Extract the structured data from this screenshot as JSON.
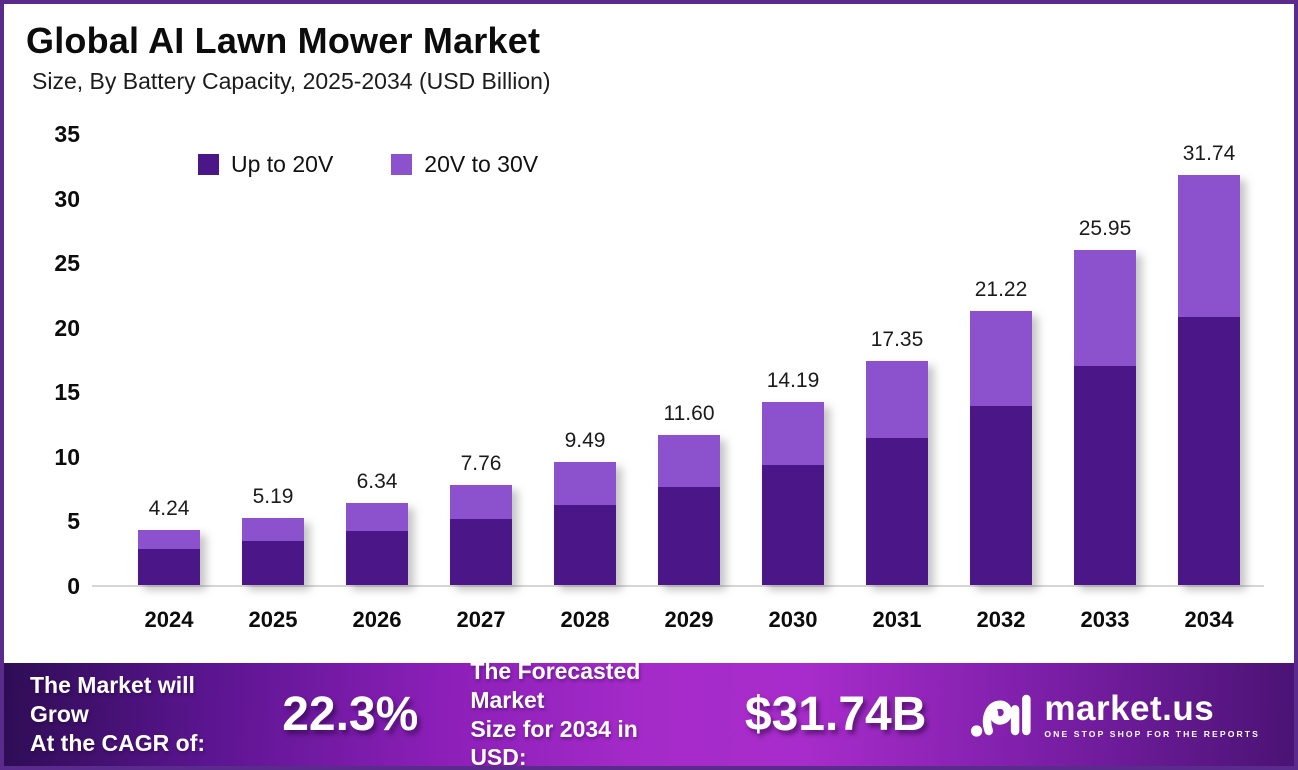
{
  "header": {
    "title": "Global AI Lawn Mower Market",
    "subtitle": "Size, By Battery Capacity, 2025-2034 (USD Billion)"
  },
  "chart_data": {
    "type": "bar",
    "stacked": true,
    "title": "Global AI Lawn Mower Market Size, By Battery Capacity, 2025-2034 (USD Billion)",
    "categories": [
      "2024",
      "2025",
      "2026",
      "2027",
      "2028",
      "2029",
      "2030",
      "2031",
      "2032",
      "2033",
      "2034"
    ],
    "series": [
      {
        "name": "Up to 20V",
        "color": "#4b1687",
        "values": [
          2.78,
          3.4,
          4.15,
          5.08,
          6.21,
          7.6,
          9.3,
          11.36,
          13.9,
          17.0,
          20.79
        ]
      },
      {
        "name": "20V to 30V",
        "color": "#8c52ce",
        "values": [
          1.46,
          1.79,
          2.19,
          2.68,
          3.28,
          4.0,
          4.89,
          5.99,
          7.32,
          8.95,
          10.95
        ]
      }
    ],
    "totals": [
      4.24,
      5.19,
      6.34,
      7.76,
      9.49,
      11.6,
      14.19,
      17.35,
      21.22,
      25.95,
      31.74
    ],
    "total_labels": [
      "4.24",
      "5.19",
      "6.34",
      "7.76",
      "9.49",
      "11.60",
      "14.19",
      "17.35",
      "21.22",
      "25.95",
      "31.74"
    ],
    "xlabel": "",
    "ylabel": "",
    "ylim": [
      0,
      35
    ],
    "yticks": [
      "0",
      "5",
      "10",
      "15",
      "20",
      "25",
      "30",
      "35"
    ],
    "grid": false,
    "legend_position": "top-left"
  },
  "footer": {
    "cagr_label_line1": "The Market will Grow",
    "cagr_label_line2": "At the CAGR of:",
    "cagr_value": "22.3%",
    "forecast_label_line1": "The Forecasted Market",
    "forecast_label_line2": "Size for 2034 in USD:",
    "forecast_value": "$31.74B",
    "brand": {
      "name": "market.us",
      "tagline": "ONE STOP SHOP FOR THE REPORTS",
      "logo_icon": "market-us-squiggle"
    }
  },
  "colors": {
    "series_dark": "#4b1687",
    "series_light": "#8c52ce",
    "page_border": "#5a2b8c",
    "footer_gradient_left": "#2e0d55",
    "footer_gradient_mid": "#a82ccb",
    "footer_gradient_right": "#4a1374",
    "axis_line": "#d6d6d6",
    "text": "#0c0c0c"
  }
}
